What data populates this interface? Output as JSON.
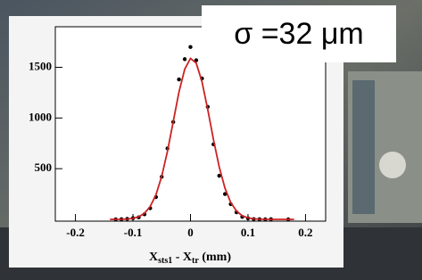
{
  "chart_data": {
    "type": "scatter",
    "annotation": "σ =32 μm",
    "x_label_parts": [
      "X",
      "sts1",
      " - X",
      "tr",
      " (mm)"
    ],
    "xlim": [
      -0.235,
      0.235
    ],
    "ylim": [
      0,
      1900
    ],
    "xticks": [
      -0.2,
      -0.1,
      0,
      0.1,
      0.2
    ],
    "yticks": [
      500,
      1000,
      1500
    ],
    "series": [
      {
        "type": "scatter",
        "color": "#000000",
        "x": [
          -0.13,
          -0.12,
          -0.11,
          -0.1,
          -0.09,
          -0.08,
          -0.07,
          -0.06,
          -0.05,
          -0.04,
          -0.03,
          -0.02,
          -0.01,
          0,
          0.01,
          0.02,
          0.03,
          0.04,
          0.05,
          0.06,
          0.07,
          0.08,
          0.09,
          0.1,
          0.11,
          0.12,
          0.13,
          0.14,
          0.17
        ],
        "values": [
          0,
          2,
          5,
          12,
          20,
          50,
          110,
          220,
          420,
          700,
          960,
          1380,
          1580,
          1700,
          1570,
          1390,
          1110,
          740,
          430,
          250,
          150,
          70,
          25,
          10,
          3,
          2,
          0,
          2,
          0
        ]
      },
      {
        "type": "line",
        "color": "#cc2222",
        "x": [
          -0.14,
          -0.12,
          -0.11,
          -0.1,
          -0.09,
          -0.08,
          -0.07,
          -0.06,
          -0.05,
          -0.04,
          -0.03,
          -0.02,
          -0.01,
          0,
          0.01,
          0.02,
          0.03,
          0.04,
          0.05,
          0.06,
          0.07,
          0.08,
          0.09,
          0.1,
          0.11,
          0.12,
          0.14,
          0.18
        ],
        "values": [
          0,
          1,
          3,
          10,
          25,
          60,
          127,
          243,
          425,
          672,
          964,
          1256,
          1482,
          1588,
          1541,
          1358,
          1084,
          786,
          516,
          307,
          166,
          82,
          36,
          15,
          5,
          2,
          0,
          0
        ]
      }
    ]
  }
}
